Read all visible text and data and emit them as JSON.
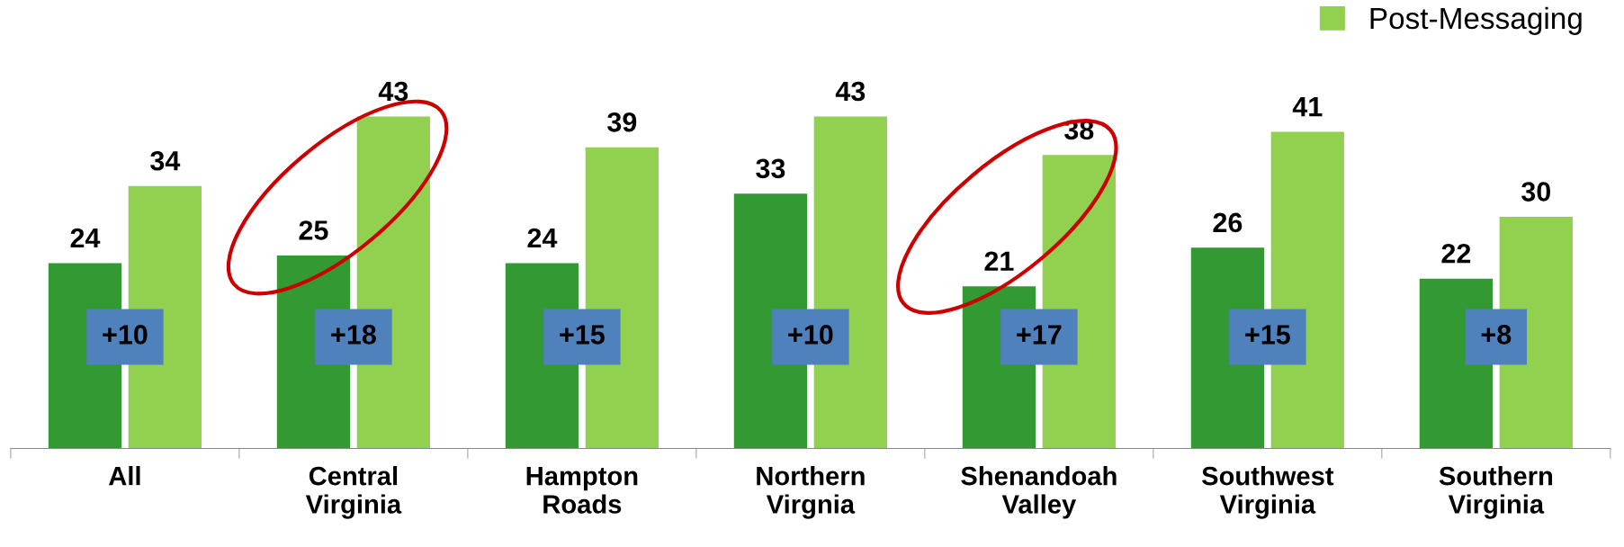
{
  "chart_data": {
    "type": "bar",
    "categories": [
      "All",
      "Central\nVirginia",
      "Hampton\nRoads",
      "Northern\nVirgnia",
      "Shenandoah\nValley",
      "Southwest\nVirginia",
      "Southern\nVirginia"
    ],
    "tick_labels": "x",
    "data_labels": true,
    "legend": "top right",
    "series": [
      {
        "color": "#339933",
        "values": [
          24,
          25,
          24,
          33,
          21,
          26,
          22
        ]
      },
      {
        "name": "Post-Messaging",
        "color": "#92d050",
        "values": [
          34,
          43,
          39,
          43,
          38,
          41,
          30
        ]
      }
    ],
    "annotations": [
      "+10",
      "+18",
      "+15",
      "+10",
      "+17",
      "+15",
      "+8"
    ]
  }
}
